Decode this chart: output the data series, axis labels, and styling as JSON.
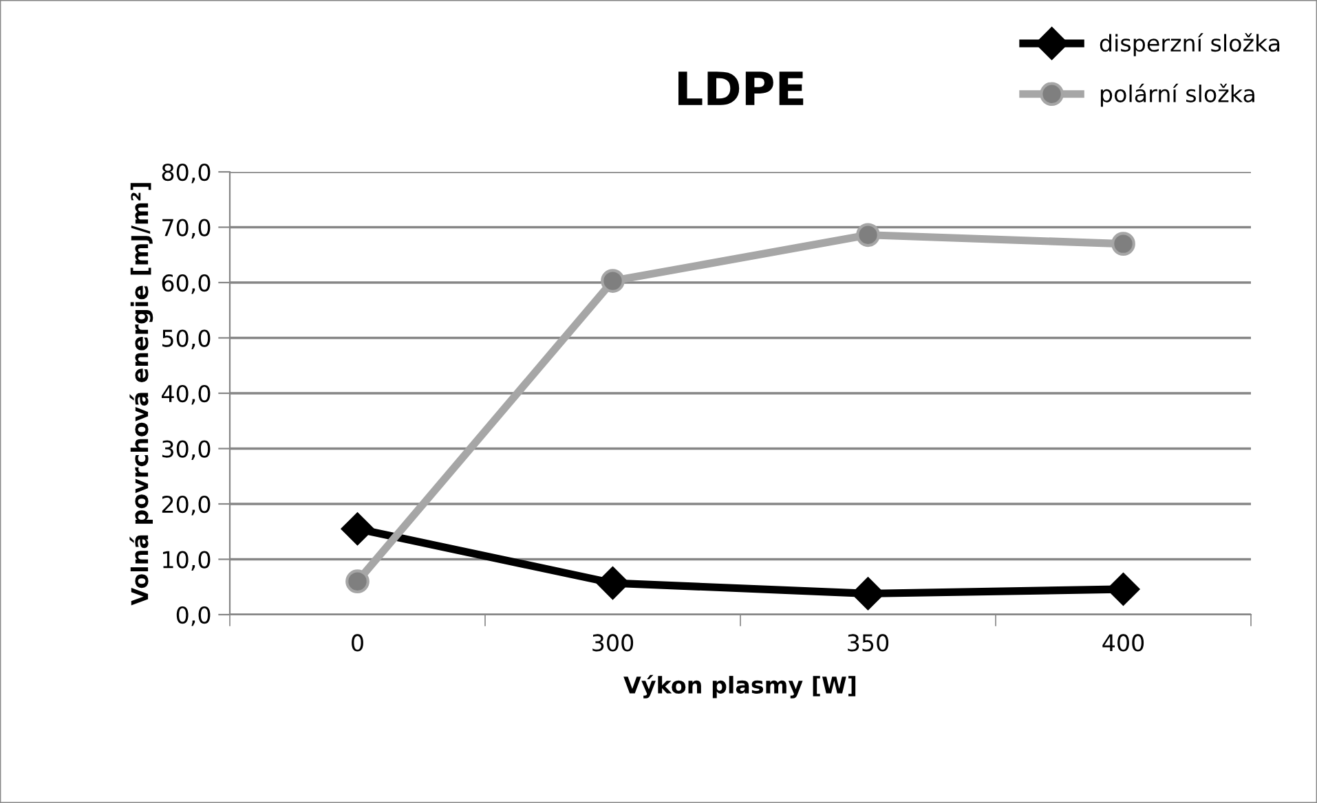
{
  "chart_data": {
    "type": "line",
    "title": "LDPE",
    "xlabel": "Výkon plasmy [W]",
    "ylabel": "Volná povrchová energie [mJ/m²]",
    "categories": [
      "0",
      "300",
      "350",
      "400"
    ],
    "series": [
      {
        "name": "disperzní složka",
        "color": "#000000",
        "marker": "diamond",
        "values": [
          15.5,
          5.7,
          3.8,
          4.6
        ]
      },
      {
        "name": "polární složka",
        "color": "#a6a6a6",
        "marker": "circle",
        "values": [
          6.0,
          60.3,
          68.6,
          67.0
        ]
      }
    ],
    "ylim": [
      0,
      80
    ],
    "yticks": [
      {
        "value": 0,
        "label": "0,0"
      },
      {
        "value": 10,
        "label": "10,0"
      },
      {
        "value": 20,
        "label": "20,0"
      },
      {
        "value": 30,
        "label": "30,0"
      },
      {
        "value": 40,
        "label": "40,0"
      },
      {
        "value": 50,
        "label": "50,0"
      },
      {
        "value": 60,
        "label": "60,0"
      },
      {
        "value": 70,
        "label": "70,0"
      },
      {
        "value": 80,
        "label": "80,0"
      }
    ],
    "grid": "y",
    "legend": "top right",
    "line_style": "solid"
  }
}
